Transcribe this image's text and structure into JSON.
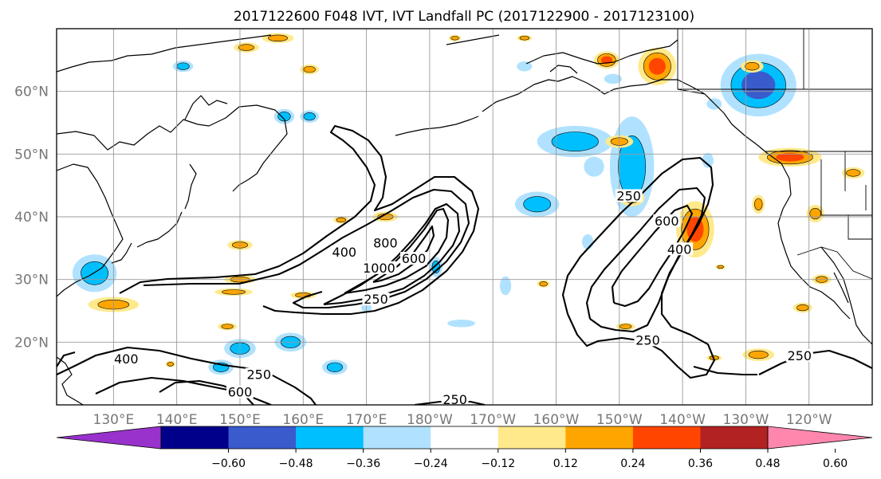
{
  "title": "2017122600 F048 IVT, IVT Landfall PC (2017122900 - 2017123100)",
  "map": {
    "projection": "PlateCarree",
    "lon_range": [
      121,
      250
    ],
    "lat_range": [
      10,
      70
    ],
    "lon_ticks": [
      {
        "lon": 130,
        "label": "130°E"
      },
      {
        "lon": 140,
        "label": "140°E"
      },
      {
        "lon": 150,
        "label": "150°E"
      },
      {
        "lon": 160,
        "label": "160°E"
      },
      {
        "lon": 170,
        "label": "170°E"
      },
      {
        "lon": 180,
        "label": "180°W"
      },
      {
        "lon": 190,
        "label": "170°W"
      },
      {
        "lon": 200,
        "label": "160°W"
      },
      {
        "lon": 210,
        "label": "150°W"
      },
      {
        "lon": 220,
        "label": "140°W"
      },
      {
        "lon": 230,
        "label": "130°W"
      },
      {
        "lon": 240,
        "label": "120°W"
      }
    ],
    "lat_ticks": [
      {
        "lat": 20,
        "label": "20°N"
      },
      {
        "lat": 30,
        "label": "30°N"
      },
      {
        "lat": 40,
        "label": "40°N"
      },
      {
        "lat": 50,
        "label": "50°N"
      },
      {
        "lat": 60,
        "label": "60°N"
      }
    ],
    "gridlines": true
  },
  "colorbar": {
    "colors": [
      "#9932cc",
      "#00008b",
      "#3a5bcc",
      "#00bfff",
      "#b0e2ff",
      "#ffffff",
      "#ffe98a",
      "#ffa500",
      "#ff4500",
      "#b22222",
      "#ff87ae"
    ],
    "boundaries": [
      -0.72,
      -0.6,
      -0.48,
      -0.36,
      -0.24,
      -0.12,
      0.12,
      0.24,
      0.36,
      0.48,
      0.6,
      0.72
    ],
    "tick_labels": [
      "−0.60",
      "−0.48",
      "−0.36",
      "−0.24",
      "−0.12",
      "0.12",
      "0.24",
      "0.36",
      "0.48",
      "0.60"
    ],
    "extend": "both"
  },
  "ivt_contours": [
    {
      "label": "250",
      "lon": 171.5,
      "lat": 26.5
    },
    {
      "label": "400",
      "lon": 166.5,
      "lat": 34.0
    },
    {
      "label": "800",
      "lon": 173.0,
      "lat": 35.5
    },
    {
      "label": "1000",
      "lon": 172.0,
      "lat": 31.5
    },
    {
      "label": "600",
      "lon": 177.5,
      "lat": 33.0
    },
    {
      "label": "600",
      "lon": 217.5,
      "lat": 39.0
    },
    {
      "label": "400",
      "lon": 219.5,
      "lat": 34.5
    },
    {
      "label": "250",
      "lon": 211.5,
      "lat": 43.0
    },
    {
      "label": "250",
      "lon": 214.5,
      "lat": 20.0
    },
    {
      "label": "400",
      "lon": 132.0,
      "lat": 17.0
    },
    {
      "label": "250",
      "lon": 153.0,
      "lat": 14.5
    },
    {
      "label": "600",
      "lon": 150.0,
      "lat": 11.7
    },
    {
      "label": "250",
      "lon": 184.0,
      "lat": 10.5
    },
    {
      "label": "250",
      "lon": 238.5,
      "lat": 17.5
    }
  ],
  "pc_patches": [
    {
      "lon": 212,
      "lat": 48,
      "r": [
        3.5,
        8
      ],
      "value": -0.36
    },
    {
      "lon": 232,
      "lat": 61,
      "r": [
        6,
        5
      ],
      "value": -0.4
    },
    {
      "lon": 203,
      "lat": 52,
      "r": [
        6,
        2.5
      ],
      "value": -0.3
    },
    {
      "lon": 197,
      "lat": 42,
      "r": [
        3.5,
        2
      ],
      "value": -0.28
    },
    {
      "lon": 127,
      "lat": 31,
      "r": [
        3.5,
        3
      ],
      "value": -0.28
    },
    {
      "lon": 170,
      "lat": 25.5,
      "r": [
        0.8,
        0.8
      ],
      "value": -0.16
    },
    {
      "lon": 158,
      "lat": 20,
      "r": [
        2.5,
        1.5
      ],
      "value": -0.28
    },
    {
      "lon": 150,
      "lat": 19,
      "r": [
        2.5,
        1.5
      ],
      "value": -0.26
    },
    {
      "lon": 165,
      "lat": 16,
      "r": [
        2.0,
        1.2
      ],
      "value": -0.26
    },
    {
      "lon": 147,
      "lat": 16,
      "r": [
        2.0,
        1.2
      ],
      "value": -0.26
    },
    {
      "lon": 141,
      "lat": 64,
      "r": [
        1.6,
        0.9
      ],
      "value": -0.26
    },
    {
      "lon": 157,
      "lat": 56,
      "r": [
        1.6,
        1.2
      ],
      "value": -0.26
    },
    {
      "lon": 161,
      "lat": 56,
      "r": [
        1.5,
        1.0
      ],
      "value": -0.28
    },
    {
      "lon": 181,
      "lat": 32,
      "r": [
        1.0,
        1.6
      ],
      "value": -0.26
    },
    {
      "lon": 185,
      "lat": 23,
      "r": [
        2.2,
        0.6
      ],
      "value": -0.24
    },
    {
      "lon": 206,
      "lat": 48,
      "r": [
        1.6,
        1.6
      ],
      "value": -0.24
    },
    {
      "lon": 209,
      "lat": 62,
      "r": [
        1.4,
        0.8
      ],
      "value": -0.24
    },
    {
      "lon": 225,
      "lat": 58,
      "r": [
        1.2,
        0.9
      ],
      "value": -0.24
    },
    {
      "lon": 195,
      "lat": 64,
      "r": [
        1.2,
        0.8
      ],
      "value": -0.2
    },
    {
      "lon": 192,
      "lat": 29,
      "r": [
        0.9,
        1.5
      ],
      "value": -0.2
    },
    {
      "lon": 205,
      "lat": 36,
      "r": [
        0.9,
        1.2
      ],
      "value": -0.2
    },
    {
      "lon": 224,
      "lat": 49,
      "r": [
        0.9,
        1.2
      ],
      "value": -0.2
    },
    {
      "lon": 222,
      "lat": 38,
      "r": [
        3.0,
        4.5
      ],
      "value": 0.44
    },
    {
      "lon": 216,
      "lat": 64,
      "r": [
        3.0,
        3.0
      ],
      "value": 0.42
    },
    {
      "lon": 237,
      "lat": 49.5,
      "r": [
        5.0,
        1.5
      ],
      "value": 0.36
    },
    {
      "lon": 232,
      "lat": 42,
      "r": [
        1.0,
        1.5
      ],
      "value": 0.3
    },
    {
      "lon": 130,
      "lat": 26,
      "r": [
        4.0,
        1.2
      ],
      "value": 0.3
    },
    {
      "lon": 210,
      "lat": 52,
      "r": [
        2.2,
        1.0
      ],
      "value": 0.34
    },
    {
      "lon": 212,
      "lat": 43,
      "r": [
        2.0,
        1.3
      ],
      "value": 0.3
    },
    {
      "lon": 208,
      "lat": 65,
      "r": [
        2.0,
        1.4
      ],
      "value": 0.36
    },
    {
      "lon": 231,
      "lat": 64,
      "r": [
        1.8,
        1.0
      ],
      "value": 0.34
    },
    {
      "lon": 156,
      "lat": 68.5,
      "r": [
        2.5,
        0.8
      ],
      "value": 0.3
    },
    {
      "lon": 151,
      "lat": 67,
      "r": [
        2.0,
        0.8
      ],
      "value": 0.3
    },
    {
      "lon": 150,
      "lat": 30,
      "r": [
        2.5,
        0.7
      ],
      "value": 0.28
    },
    {
      "lon": 149,
      "lat": 28,
      "r": [
        3.0,
        0.6
      ],
      "value": 0.26
    },
    {
      "lon": 173,
      "lat": 40,
      "r": [
        2.0,
        0.8
      ],
      "value": 0.26
    },
    {
      "lon": 166,
      "lat": 39.5,
      "r": [
        1.2,
        0.6
      ],
      "value": 0.26
    },
    {
      "lon": 160,
      "lat": 27.5,
      "r": [
        2.0,
        0.6
      ],
      "value": 0.26
    },
    {
      "lon": 161,
      "lat": 63.5,
      "r": [
        1.5,
        0.8
      ],
      "value": 0.26
    },
    {
      "lon": 139,
      "lat": 16.5,
      "r": [
        0.8,
        0.5
      ],
      "value": 0.26
    },
    {
      "lon": 148,
      "lat": 22.5,
      "r": [
        1.5,
        0.6
      ],
      "value": 0.28
    },
    {
      "lon": 211,
      "lat": 22.5,
      "r": [
        1.5,
        0.6
      ],
      "value": 0.26
    },
    {
      "lon": 198,
      "lat": 29.3,
      "r": [
        1.0,
        0.6
      ],
      "value": 0.3
    },
    {
      "lon": 225,
      "lat": 17.5,
      "r": [
        1.2,
        0.5
      ],
      "value": 0.28
    },
    {
      "lon": 232,
      "lat": 18,
      "r": [
        2.5,
        1.0
      ],
      "value": 0.3
    },
    {
      "lon": 242,
      "lat": 30,
      "r": [
        1.5,
        0.8
      ],
      "value": 0.28
    },
    {
      "lon": 239,
      "lat": 25.5,
      "r": [
        1.5,
        0.8
      ],
      "value": 0.28
    },
    {
      "lon": 241,
      "lat": 40.5,
      "r": [
        1.4,
        1.4
      ],
      "value": 0.3
    },
    {
      "lon": 247,
      "lat": 47,
      "r": [
        1.8,
        0.9
      ],
      "value": 0.28
    },
    {
      "lon": 226,
      "lat": 32,
      "r": [
        0.8,
        0.4
      ],
      "value": 0.26
    },
    {
      "lon": 150,
      "lat": 35.5,
      "r": [
        2.0,
        0.8
      ],
      "value": 0.28
    },
    {
      "lon": 184,
      "lat": 68.5,
      "r": [
        1.0,
        0.5
      ],
      "value": 0.26
    },
    {
      "lon": 195,
      "lat": 68.5,
      "r": [
        1.2,
        0.5
      ],
      "value": 0.26
    }
  ]
}
